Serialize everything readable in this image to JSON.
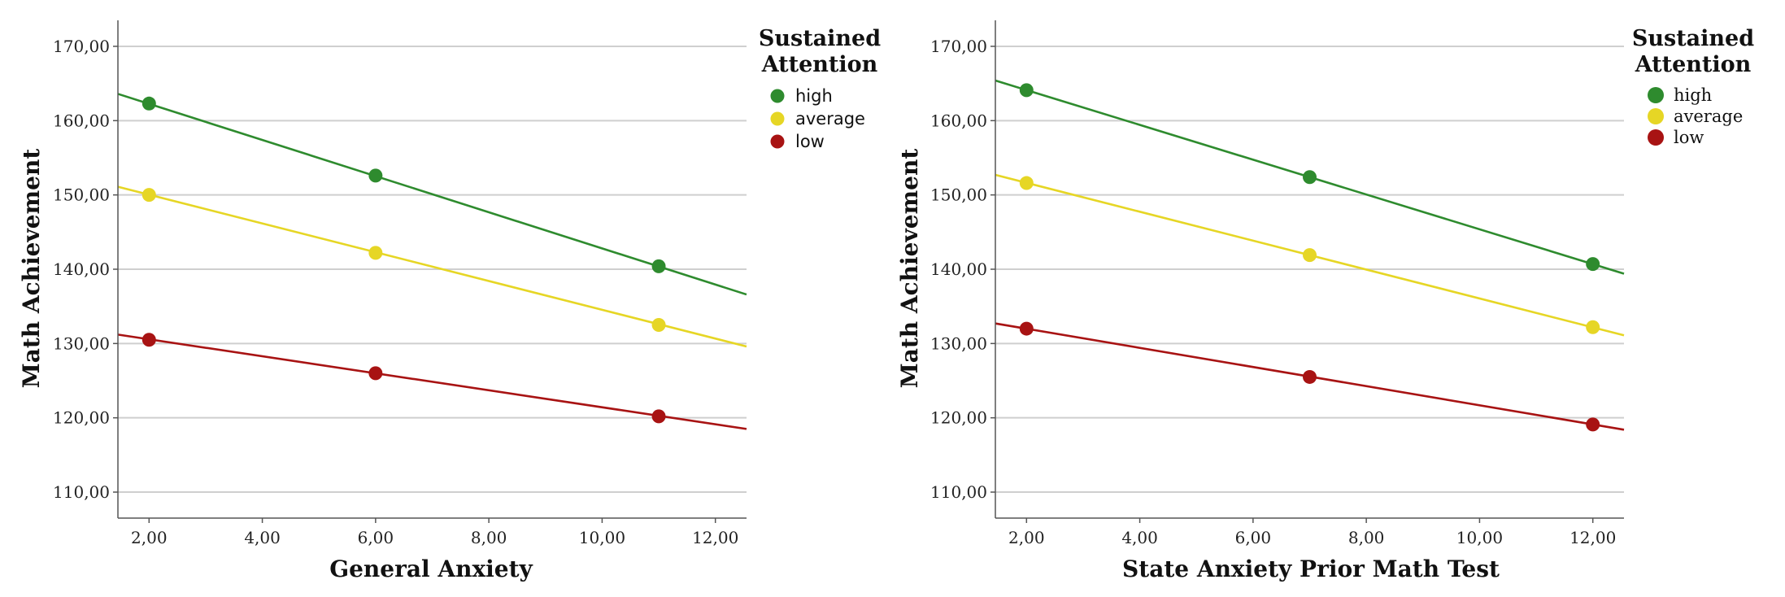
{
  "chart_data": [
    {
      "type": "line",
      "xlabel": "General Anxiety",
      "ylabel": "Math Achievement",
      "xlim": [
        1.45,
        12.55
      ],
      "ylim": [
        106.5,
        173.5
      ],
      "xticks": [
        2,
        4,
        6,
        8,
        10,
        12
      ],
      "xtick_labels": [
        "2,00",
        "4,00",
        "6,00",
        "8,00",
        "10,00",
        "12,00"
      ],
      "yticks": [
        110,
        120,
        130,
        140,
        150,
        160,
        170
      ],
      "ytick_labels": [
        "110,00",
        "120,00",
        "130,00",
        "140,00",
        "150,00",
        "160,00",
        "170,00"
      ],
      "grid": true,
      "legend_title_lines": [
        "Sustained",
        "Attention"
      ],
      "series": [
        {
          "name": "high",
          "color": "#2e8b2e",
          "x": [
            2,
            6,
            11
          ],
          "values": [
            162.3,
            152.6,
            140.4
          ],
          "fit": {
            "x": [
              1.45,
              12.55
            ],
            "y": [
              163.6,
              136.6
            ]
          }
        },
        {
          "name": "average",
          "color": "#e6d625",
          "x": [
            2,
            6,
            11
          ],
          "values": [
            150.0,
            142.2,
            132.5
          ],
          "fit": {
            "x": [
              1.45,
              12.55
            ],
            "y": [
              151.1,
              129.6
            ]
          }
        },
        {
          "name": "low",
          "color": "#a81313",
          "x": [
            2,
            6,
            11
          ],
          "values": [
            130.5,
            126.0,
            120.2
          ],
          "fit": {
            "x": [
              1.45,
              12.55
            ],
            "y": [
              131.2,
              118.5
            ]
          }
        }
      ]
    },
    {
      "type": "line",
      "xlabel": "State Anxiety Prior Math Test",
      "ylabel": "Math Achievement",
      "xlim": [
        1.45,
        12.55
      ],
      "ylim": [
        106.5,
        173.5
      ],
      "xticks": [
        2,
        4,
        6,
        8,
        10,
        12
      ],
      "xtick_labels": [
        "2,00",
        "4,00",
        "6,00",
        "8,00",
        "10,00",
        "12,00"
      ],
      "yticks": [
        110,
        120,
        130,
        140,
        150,
        160,
        170
      ],
      "ytick_labels": [
        "110,00",
        "120,00",
        "130,00",
        "140,00",
        "150,00",
        "160,00",
        "170,00"
      ],
      "grid": true,
      "legend_title_lines": [
        "Sustained",
        "Attention"
      ],
      "series": [
        {
          "name": "high",
          "color": "#2e8b2e",
          "x": [
            2,
            7,
            12
          ],
          "values": [
            164.1,
            152.4,
            140.7
          ],
          "fit": {
            "x": [
              1.45,
              12.55
            ],
            "y": [
              165.4,
              139.4
            ]
          }
        },
        {
          "name": "average",
          "color": "#e6d625",
          "x": [
            2,
            7,
            12
          ],
          "values": [
            151.6,
            141.9,
            132.2
          ],
          "fit": {
            "x": [
              1.45,
              12.55
            ],
            "y": [
              152.7,
              131.1
            ]
          }
        },
        {
          "name": "low",
          "color": "#a81313",
          "x": [
            2,
            7,
            12
          ],
          "values": [
            132.0,
            125.5,
            119.1
          ],
          "fit": {
            "x": [
              1.45,
              12.55
            ],
            "y": [
              132.7,
              118.4
            ]
          }
        }
      ]
    }
  ]
}
